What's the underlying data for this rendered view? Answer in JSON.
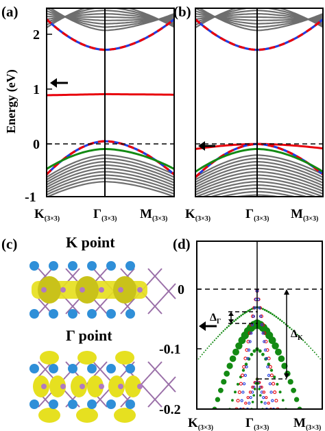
{
  "panels": {
    "a": "(a)",
    "b": "(b)",
    "c": "(c)",
    "d": "(d)"
  },
  "axes": {
    "energy_label": "Energy (eV)"
  },
  "kpoints": [
    {
      "main": "K",
      "sub": "(3×3)"
    },
    {
      "main": "Γ",
      "sub": "(3×3)"
    },
    {
      "main": "M",
      "sub": "(3×3)"
    }
  ],
  "panel_c": {
    "k_title": "K point",
    "g_title": "Γ point"
  },
  "annotations": {
    "delta_gamma": "Δ",
    "delta_gamma_sub": "Γ",
    "delta_k": "Δ",
    "delta_k_sub": "K"
  },
  "colors": {
    "gray_bands": "#6e6e6e",
    "red": "#e8000b",
    "blue": "#1f3ee0",
    "green": "#138a13",
    "fermi": "#000000",
    "atom_blue": "#2f8fd8",
    "charge_yellow": "#e6e020"
  },
  "chart_data": [
    {
      "id": "a",
      "type": "line",
      "title": "",
      "xlabel": "",
      "ylabel": "Energy (eV)",
      "ylim": [
        -1,
        2.4
      ],
      "yticks": [
        -1,
        0,
        1,
        2
      ],
      "x": [
        "K(3×3)",
        "Γ(3×3)",
        "M(3×3)"
      ],
      "fermi_level": 0,
      "series": [
        {
          "color": "red",
          "style": "solid",
          "values": [
            0.83,
            0.85,
            0.84
          ]
        },
        {
          "color": "red/blue",
          "style": "dashed",
          "values": [
            2.2,
            1.65,
            2.2
          ]
        },
        {
          "color": "red/blue",
          "style": "dashed",
          "values": [
            -0.6,
            0.0,
            -0.6
          ]
        },
        {
          "color": "green",
          "style": "solid",
          "values": [
            -0.5,
            -0.14,
            -0.5
          ]
        }
      ]
    },
    {
      "id": "b",
      "type": "line",
      "title": "",
      "ylim": [
        -1,
        2.4
      ],
      "x": [
        "K(3×3)",
        "Γ(3×3)",
        "M(3×3)"
      ],
      "fermi_level": 0,
      "series": [
        {
          "color": "red/blue",
          "style": "dashed",
          "values": [
            2.2,
            1.65,
            2.2
          ]
        },
        {
          "color": "red",
          "style": "solid",
          "values": [
            -0.14,
            -0.05,
            -0.13
          ]
        },
        {
          "color": "red/blue",
          "style": "dashed",
          "values": [
            -0.65,
            -0.05,
            -0.6
          ]
        },
        {
          "color": "green",
          "style": "solid",
          "values": [
            -0.55,
            -0.14,
            -0.55
          ]
        }
      ]
    },
    {
      "id": "d",
      "type": "scatter",
      "title": "",
      "ylim": [
        -0.2,
        0.05
      ],
      "yticks": [
        0,
        -0.1,
        -0.2
      ],
      "x": [
        "K(3×3)",
        "Γ(3×3)",
        "M(3×3)"
      ],
      "fermi_level": 0,
      "series": [
        {
          "color": "green",
          "values": [
            -0.2,
            -0.058,
            -0.2
          ]
        },
        {
          "color": "green",
          "values": [
            -0.12,
            -0.03,
            -0.12
          ]
        },
        {
          "color": "red",
          "values": [
            -0.2,
            -0.003,
            -0.2
          ]
        },
        {
          "color": "blue",
          "values": [
            -0.2,
            -0.003,
            -0.2
          ]
        },
        {
          "color": "green",
          "values": [
            -0.2,
            -0.1,
            -0.2
          ]
        }
      ],
      "delta_gamma_range": [
        -0.027,
        -0.058
      ],
      "delta_k_range": [
        0,
        -0.15
      ]
    }
  ]
}
